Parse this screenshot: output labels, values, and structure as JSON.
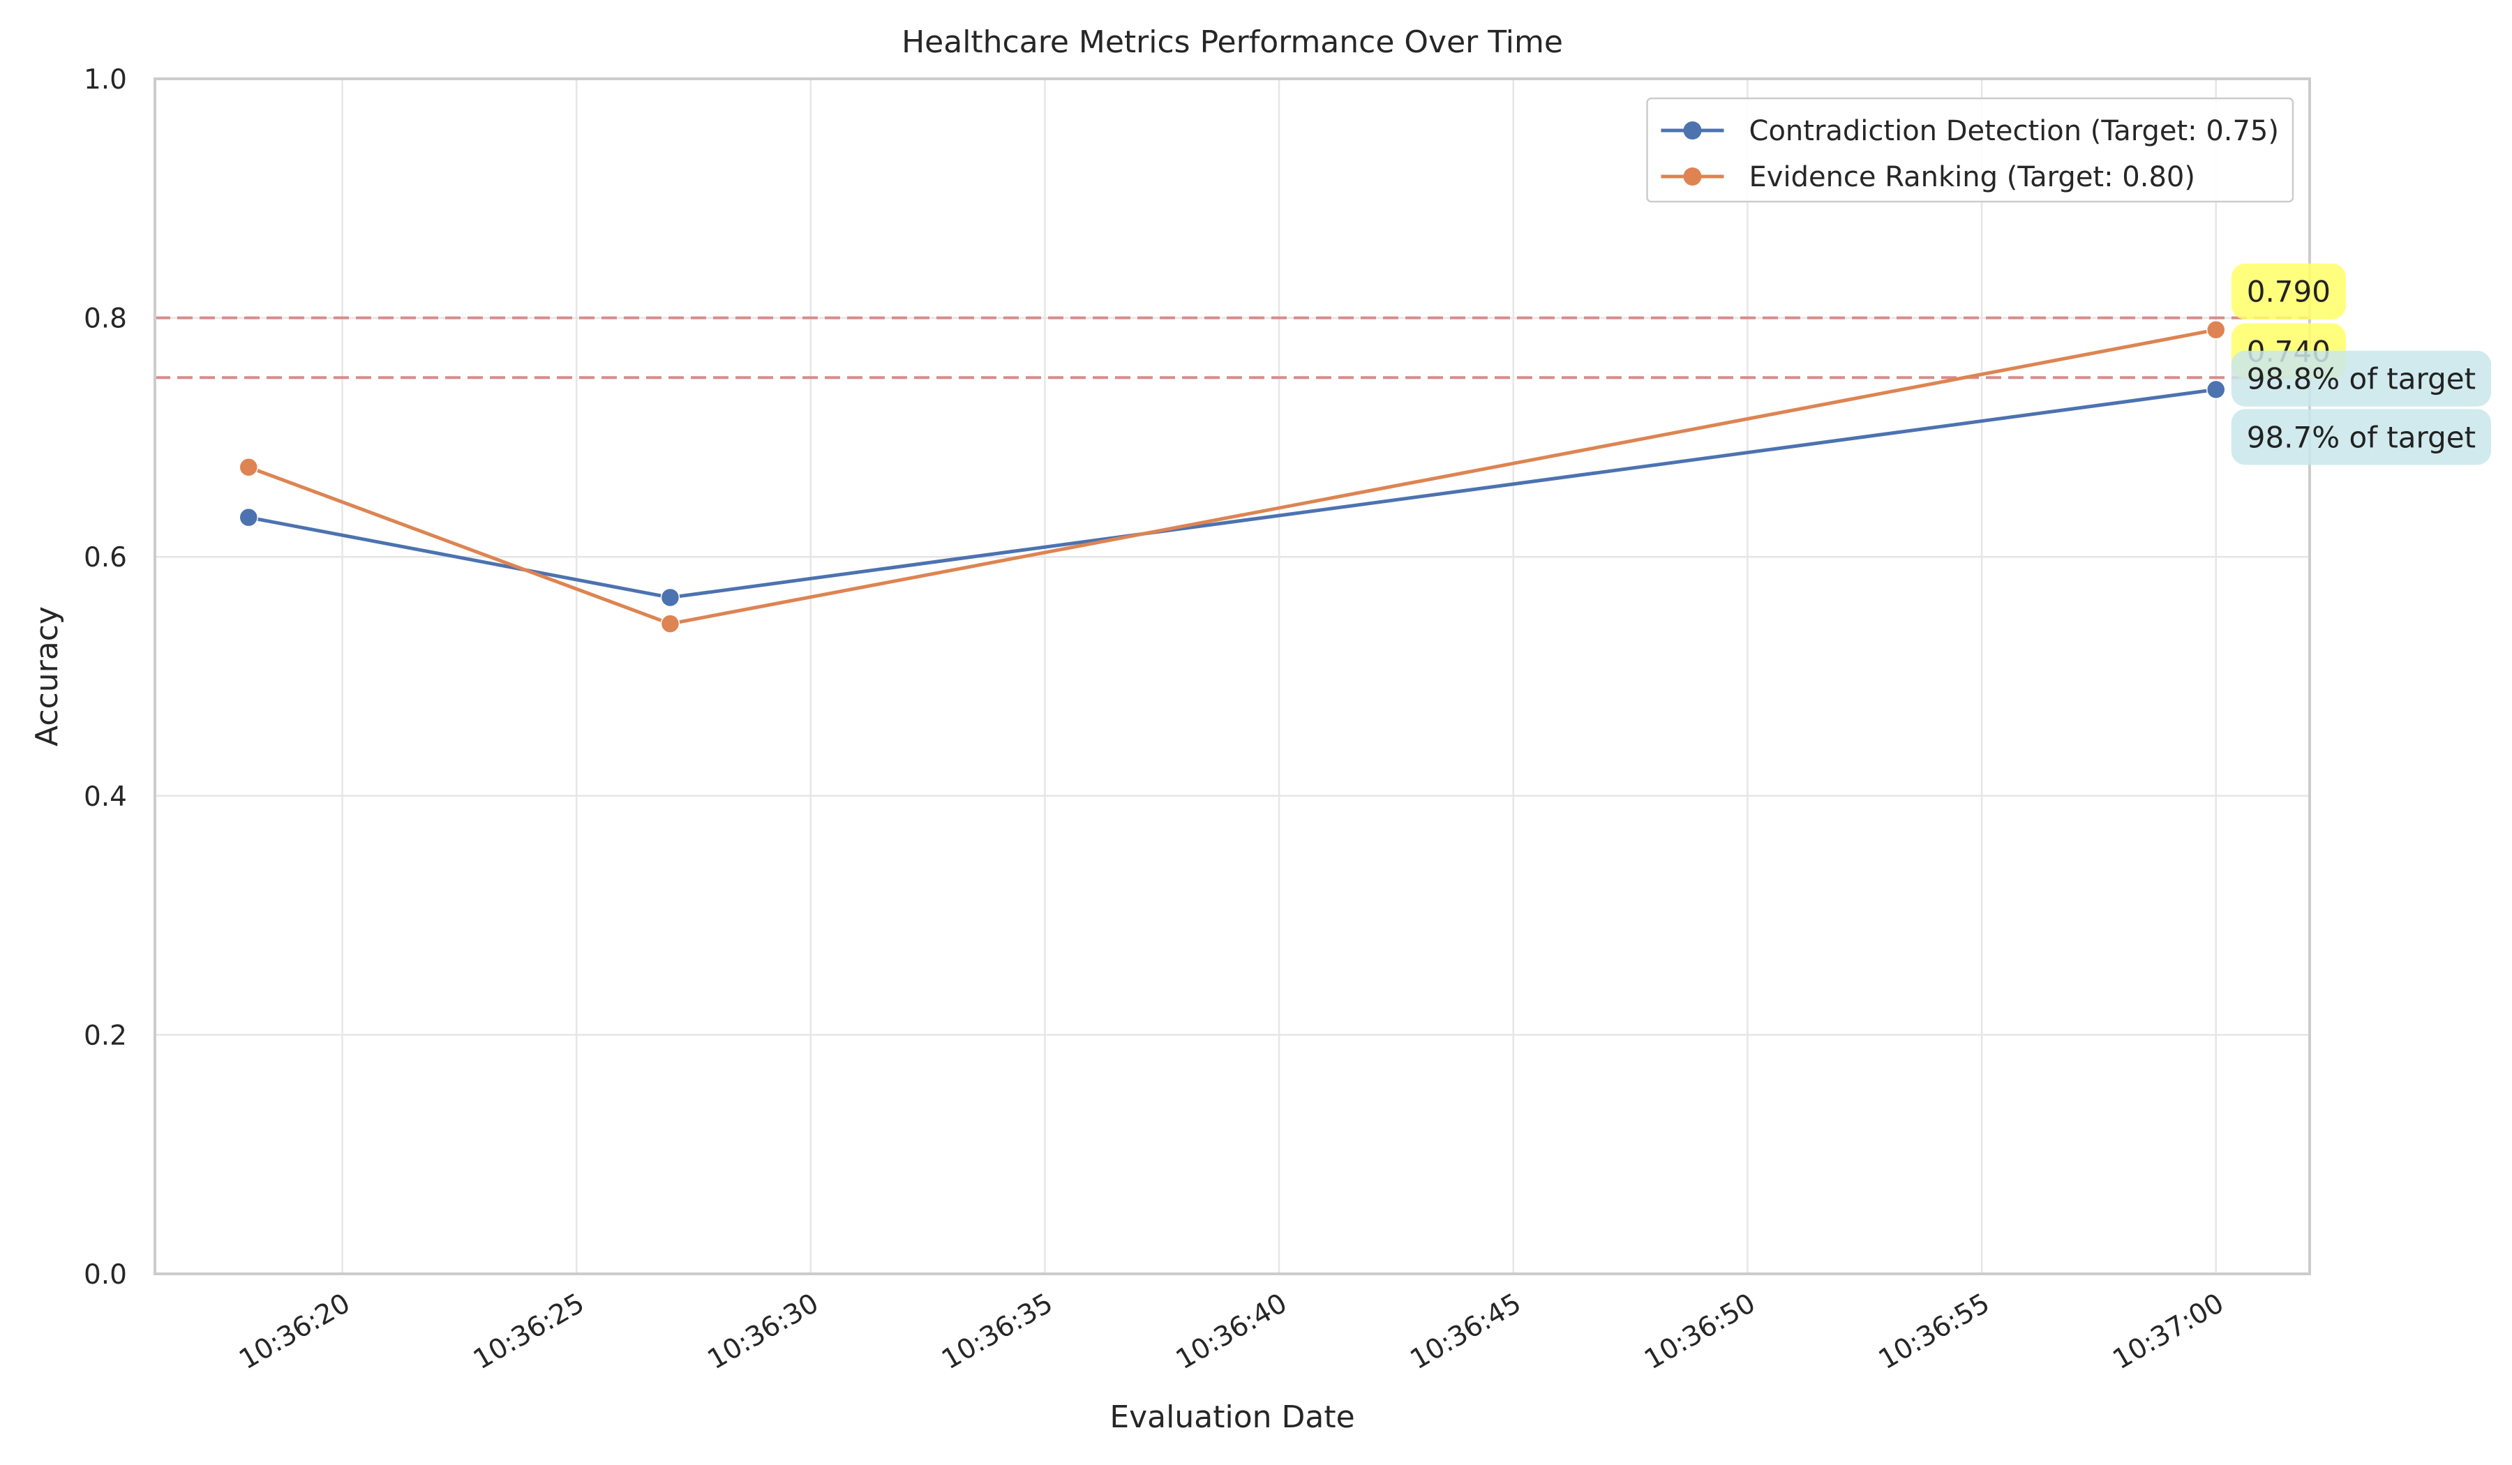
{
  "chart_data": {
    "type": "line",
    "title": "Healthcare Metrics Performance Over Time",
    "xlabel": "Evaluation Date",
    "ylabel": "Accuracy",
    "ylim": [
      0,
      1
    ],
    "y_ticks": [
      "0.0",
      "0.2",
      "0.4",
      "0.6",
      "0.8",
      "1.0"
    ],
    "x_ticks": [
      "10:36:20",
      "10:36:25",
      "10:36:30",
      "10:36:35",
      "10:36:40",
      "10:36:45",
      "10:36:50",
      "10:36:55",
      "10:37:00"
    ],
    "xlim": [
      "10:36:16",
      "10:37:02"
    ],
    "x": [
      "10:36:18",
      "10:36:27",
      "10:37:00"
    ],
    "grid": true,
    "legend_position": "top-right",
    "series": [
      {
        "name": "Contradiction Detection (Target: 0.75)",
        "color": "#4c72b0",
        "values": [
          0.633,
          0.566,
          0.74
        ],
        "target": 0.75
      },
      {
        "name": "Evidence Ranking (Target: 0.80)",
        "color": "#dd8452",
        "values": [
          0.675,
          0.544,
          0.79
        ],
        "target": 0.8
      }
    ],
    "target_line_color": "#d98b8b",
    "annotations": [
      {
        "text": "0.790",
        "style": "value"
      },
      {
        "text": "0.740",
        "style": "value"
      },
      {
        "text": "98.8% of target",
        "style": "percent"
      },
      {
        "text": "98.7% of target",
        "style": "percent"
      }
    ],
    "annotation_colors": {
      "value": "#ffff66",
      "percent": "#c9e6ea"
    }
  }
}
